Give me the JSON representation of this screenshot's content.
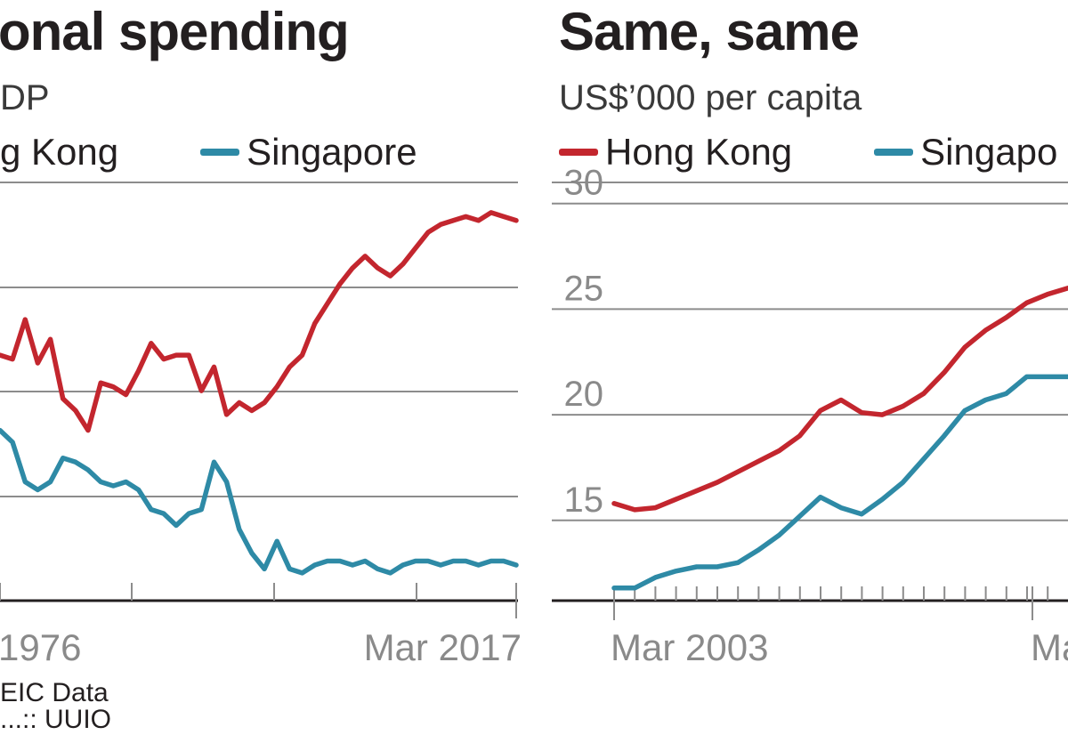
{
  "chart_data": [
    {
      "type": "line",
      "title": "onal spending",
      "subtitle": "DP",
      "xlabel": "",
      "ylabel": "",
      "x_tick_labels": [
        "1976",
        "Mar 2017"
      ],
      "x_range": [
        1976,
        2017
      ],
      "legend": "top",
      "grid": true,
      "series": [
        {
          "name": "g Kong",
          "color": "#c3262e",
          "x": [
            1976,
            1977,
            1978,
            1979,
            1980,
            1981,
            1982,
            1983,
            1984,
            1985,
            1986,
            1987,
            1988,
            1989,
            1990,
            1991,
            1992,
            1993,
            1994,
            1995,
            1996,
            1997,
            1998,
            1999,
            2000,
            2001,
            2002,
            2003,
            2004,
            2005,
            2006,
            2007,
            2008,
            2009,
            2010,
            2011,
            2012,
            2013,
            2014,
            2015,
            2016,
            2017
          ],
          "values": [
            0.62,
            0.61,
            0.71,
            0.6,
            0.66,
            0.51,
            0.48,
            0.43,
            0.55,
            0.54,
            0.52,
            0.58,
            0.65,
            0.61,
            0.62,
            0.62,
            0.53,
            0.59,
            0.47,
            0.5,
            0.48,
            0.5,
            0.54,
            0.59,
            0.62,
            0.7,
            0.75,
            0.8,
            0.84,
            0.87,
            0.84,
            0.82,
            0.85,
            0.89,
            0.93,
            0.95,
            0.96,
            0.97,
            0.96,
            0.98,
            0.97,
            0.96
          ]
        },
        {
          "name": "Singapore",
          "color": "#2e8aa6",
          "x": [
            1976,
            1977,
            1978,
            1979,
            1980,
            1981,
            1982,
            1983,
            1984,
            1985,
            1986,
            1987,
            1988,
            1989,
            1990,
            1991,
            1992,
            1993,
            1994,
            1995,
            1996,
            1997,
            1998,
            1999,
            2000,
            2001,
            2002,
            2003,
            2004,
            2005,
            2006,
            2007,
            2008,
            2009,
            2010,
            2011,
            2012,
            2013,
            2014,
            2015,
            2016,
            2017
          ],
          "values": [
            0.43,
            0.4,
            0.3,
            0.28,
            0.3,
            0.36,
            0.35,
            0.33,
            0.3,
            0.29,
            0.3,
            0.28,
            0.23,
            0.22,
            0.19,
            0.22,
            0.23,
            0.35,
            0.3,
            0.18,
            0.12,
            0.08,
            0.15,
            0.08,
            0.07,
            0.09,
            0.1,
            0.1,
            0.09,
            0.1,
            0.08,
            0.07,
            0.09,
            0.1,
            0.1,
            0.09,
            0.1,
            0.1,
            0.09,
            0.1,
            0.1,
            0.09
          ]
        }
      ]
    },
    {
      "type": "line",
      "title": "Same, same",
      "subtitle": "US$’000 per capita",
      "xlabel": "",
      "ylabel": "",
      "x_tick_labels": [
        "Mar 2003",
        "Ma"
      ],
      "x_range": [
        2003,
        2014
      ],
      "y_ticks": [
        15,
        20,
        25,
        30
      ],
      "ylim": [
        11.2,
        31
      ],
      "legend": "top",
      "grid": true,
      "series": [
        {
          "name": "Hong Kong",
          "color": "#c3262e",
          "x": [
            2003,
            2003.5,
            2004,
            2004.5,
            2005,
            2005.5,
            2006,
            2006.5,
            2007,
            2007.5,
            2008,
            2008.5,
            2009,
            2009.5,
            2010,
            2010.5,
            2011,
            2011.5,
            2012,
            2012.5,
            2013,
            2013.5,
            2014
          ],
          "values": [
            15.8,
            15.5,
            15.6,
            16.0,
            16.4,
            16.8,
            17.3,
            17.8,
            18.3,
            19.0,
            20.2,
            20.7,
            20.1,
            20.0,
            20.4,
            21.0,
            22.0,
            23.2,
            24.0,
            24.6,
            25.3,
            25.7,
            26.0
          ]
        },
        {
          "name": "Singapo",
          "color": "#2e8aa6",
          "x": [
            2003,
            2003.5,
            2004,
            2004.5,
            2005,
            2005.5,
            2006,
            2006.5,
            2007,
            2007.5,
            2008,
            2008.5,
            2009,
            2009.5,
            2010,
            2010.5,
            2011,
            2011.5,
            2012,
            2012.5,
            2013,
            2013.5,
            2014
          ],
          "values": [
            11.8,
            11.8,
            12.3,
            12.6,
            12.8,
            12.8,
            13.0,
            13.6,
            14.3,
            15.2,
            16.1,
            15.6,
            15.3,
            16.0,
            16.8,
            17.9,
            19.0,
            20.2,
            20.7,
            21.0,
            21.8,
            21.8,
            21.8
          ]
        }
      ]
    }
  ],
  "source": {
    "line1": "EIC Data",
    "line2": "...:: UUIO"
  }
}
